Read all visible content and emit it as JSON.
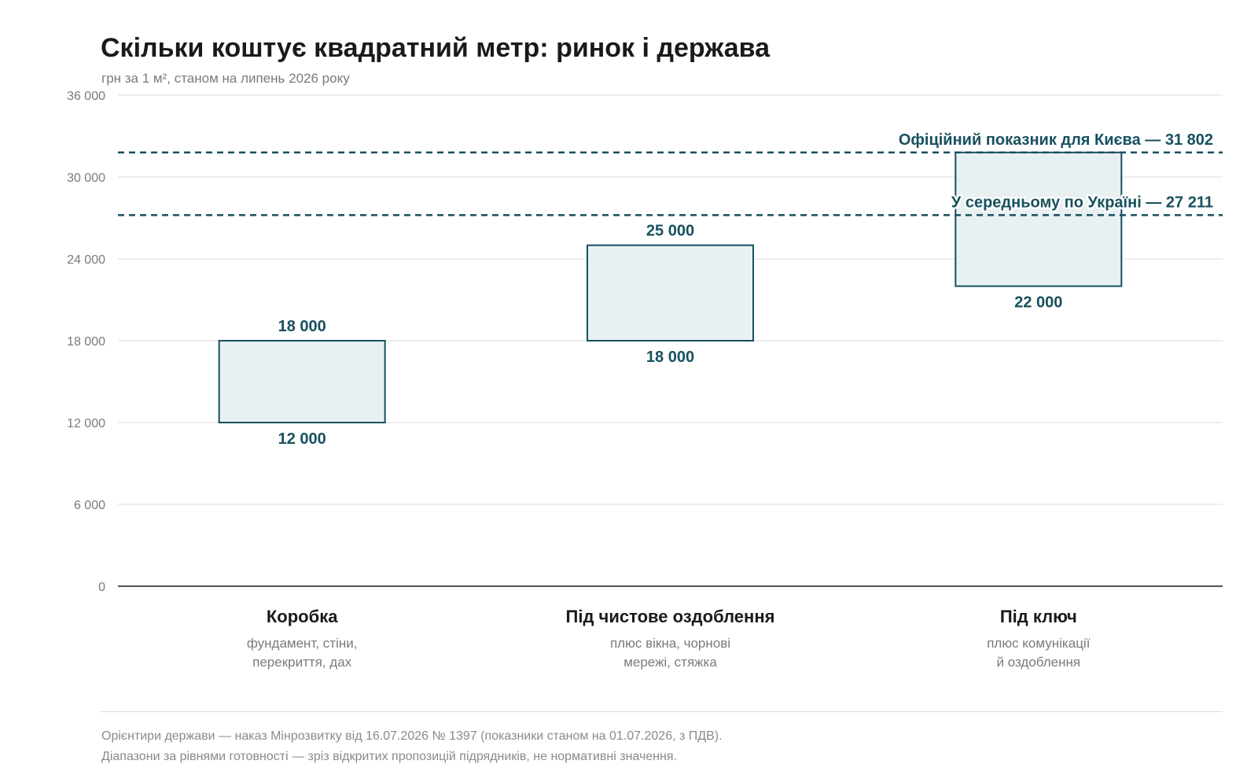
{
  "title": "Скільки коштує квадратний метр: ринок і держава",
  "subtitle": "грн за 1 м², станом на липень 2026 року",
  "footnotes": [
    "Орієнтири держави — наказ Мінрозвитку від 16.07.2026 № 1397 (показники станом на 01.07.2026, з ПДВ).",
    "Діапазони за рівнями готовності — зріз відкритих пропозицій підрядників, не нормативні значення."
  ],
  "colors": {
    "bar_fill": "#e8f0f2",
    "bar_stroke": "#17505e",
    "reference_line": "#17505e",
    "label": "#17505e",
    "grid": "#dddddd",
    "axis": "#1a1a1a"
  },
  "chart_data": {
    "type": "bar",
    "subtype": "floating-range",
    "ylim": [
      0,
      36000
    ],
    "yticks": [
      0,
      6000,
      12000,
      18000,
      24000,
      30000,
      36000
    ],
    "ytick_labels": [
      "0",
      "6 000",
      "12 000",
      "18 000",
      "24 000",
      "30 000",
      "36 000"
    ],
    "grid": true,
    "categories": [
      {
        "name": "Коробка",
        "desc": [
          "фундамент, стіни,",
          "перекриття, дах"
        ],
        "low": 12000,
        "high": 18000,
        "low_label": "12 000",
        "high_label": "18 000"
      },
      {
        "name": "Під чистове оздоблення",
        "desc": [
          "плюс вікна, чорнові",
          "мережі, стяжка"
        ],
        "low": 18000,
        "high": 25000,
        "low_label": "18 000",
        "high_label": "25 000"
      },
      {
        "name": "Під ключ",
        "desc": [
          "плюс комунікації",
          "й оздоблення"
        ],
        "low": 22000,
        "high": 31802,
        "low_label": "22 000",
        "high_label": ""
      }
    ],
    "reference_lines": [
      {
        "value": 31802,
        "label": "Офіційний показник для Києва — 31 802"
      },
      {
        "value": 27211,
        "label": "У середньому по Україні — 27 211"
      }
    ]
  }
}
